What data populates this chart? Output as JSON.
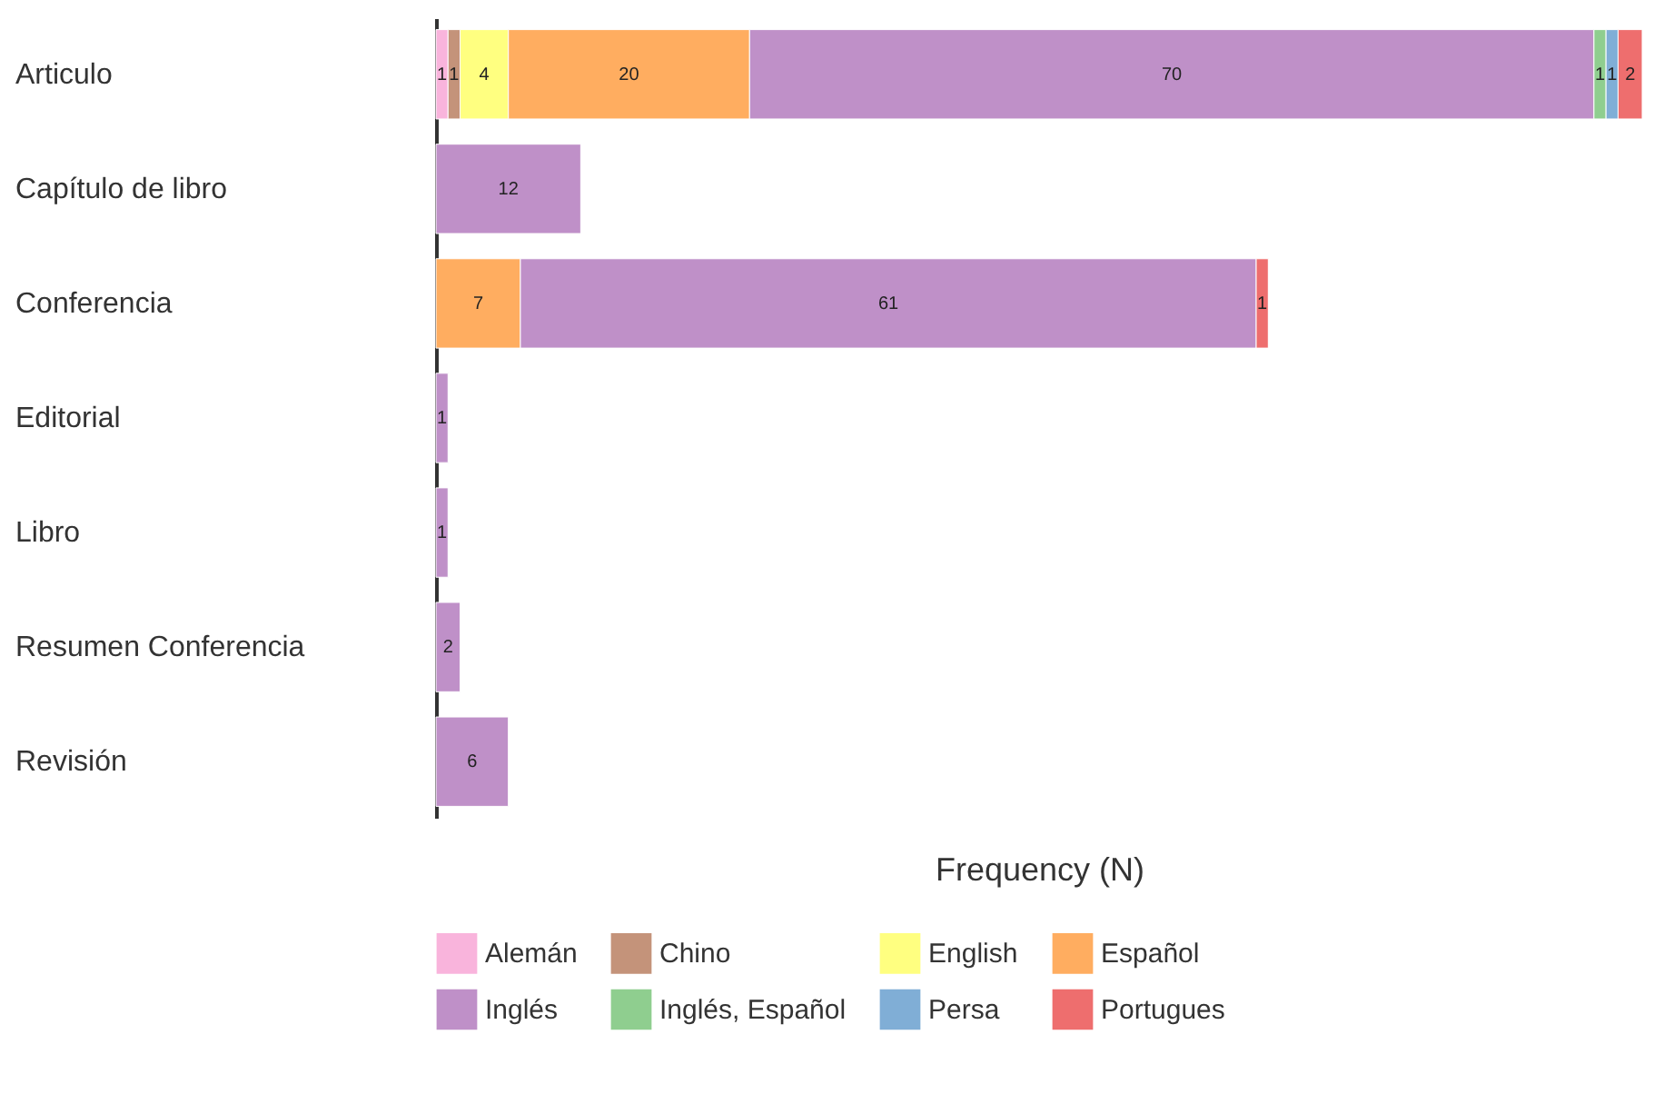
{
  "chart_data": {
    "type": "bar",
    "orientation": "horizontal",
    "stacked": true,
    "data_labels": true,
    "xlabel": "Frequency (N)",
    "xlim": [
      0,
      100
    ],
    "tick_labels": "y",
    "grid": false,
    "legend": "bottom",
    "categories": [
      "Articulo",
      "Capítulo de libro",
      "Conferencia",
      "Editorial",
      "Libro",
      "Resumen Conferencia",
      "Revisión"
    ],
    "series": [
      {
        "name": "Alemán",
        "color": "#f9b4dc",
        "values": [
          1,
          null,
          null,
          null,
          null,
          null,
          null
        ]
      },
      {
        "name": "Chino",
        "color": "#c4937a",
        "values": [
          1,
          null,
          null,
          null,
          null,
          null,
          null
        ]
      },
      {
        "name": "English",
        "color": "#ffff80",
        "values": [
          4,
          null,
          null,
          null,
          null,
          null,
          null
        ]
      },
      {
        "name": "Español",
        "color": "#ffad60",
        "values": [
          20,
          null,
          7,
          null,
          null,
          null,
          null
        ]
      },
      {
        "name": "Inglés",
        "color": "#bf90c8",
        "values": [
          70,
          12,
          61,
          1,
          1,
          2,
          6
        ]
      },
      {
        "name": "Inglés, Español",
        "color": "#8fce8f",
        "values": [
          1,
          null,
          null,
          null,
          null,
          null,
          null
        ]
      },
      {
        "name": "Persa",
        "color": "#80aed6",
        "values": [
          1,
          null,
          null,
          null,
          null,
          null,
          null
        ]
      },
      {
        "name": "Portugues",
        "color": "#ee6e6e",
        "values": [
          2,
          null,
          1,
          null,
          null,
          null,
          null
        ]
      }
    ]
  }
}
